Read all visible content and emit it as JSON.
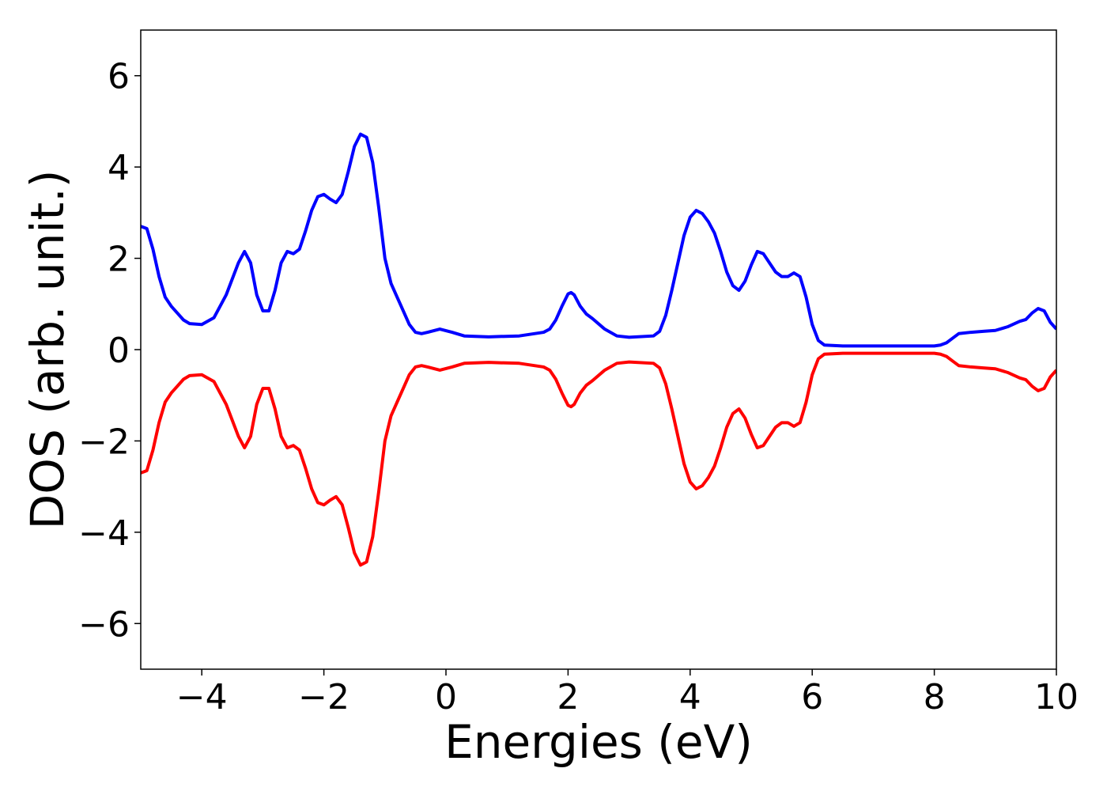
{
  "chart_data": {
    "type": "line",
    "xlabel": "Energies (eV)",
    "ylabel": "DOS (arb. unit.)",
    "x": [
      -5,
      -4.9,
      -4.8,
      -4.7,
      -4.6,
      -4.5,
      -4.4,
      -4.3,
      -4.2,
      -4.0,
      -3.8,
      -3.6,
      -3.4,
      -3.3,
      -3.2,
      -3.1,
      -3.0,
      -2.9,
      -2.8,
      -2.7,
      -2.6,
      -2.5,
      -2.4,
      -2.3,
      -2.2,
      -2.1,
      -2.0,
      -1.9,
      -1.8,
      -1.7,
      -1.6,
      -1.5,
      -1.4,
      -1.3,
      -1.2,
      -1.1,
      -1.0,
      -0.9,
      -0.8,
      -0.7,
      -0.6,
      -0.5,
      -0.4,
      -0.3,
      -0.1,
      0.1,
      0.3,
      0.7,
      1.2,
      1.6,
      1.7,
      1.8,
      1.9,
      2.0,
      2.05,
      2.1,
      2.2,
      2.3,
      2.4,
      2.6,
      2.8,
      3.0,
      3.4,
      3.5,
      3.6,
      3.7,
      3.8,
      3.9,
      4.0,
      4.1,
      4.2,
      4.3,
      4.4,
      4.5,
      4.6,
      4.7,
      4.8,
      4.9,
      5.0,
      5.1,
      5.2,
      5.3,
      5.4,
      5.5,
      5.6,
      5.7,
      5.8,
      5.9,
      6.0,
      6.1,
      6.2,
      6.5,
      7.5,
      8.0,
      8.1,
      8.2,
      8.3,
      8.4,
      8.6,
      8.8,
      9.0,
      9.2,
      9.4,
      9.5,
      9.6,
      9.7,
      9.8,
      9.9,
      10
    ],
    "series": [
      {
        "color": "#0000ff",
        "values": [
          2.7,
          2.65,
          2.2,
          1.6,
          1.15,
          0.95,
          0.8,
          0.65,
          0.57,
          0.55,
          0.7,
          1.2,
          1.9,
          2.15,
          1.9,
          1.2,
          0.85,
          0.85,
          1.3,
          1.9,
          2.15,
          2.1,
          2.2,
          2.6,
          3.05,
          3.35,
          3.4,
          3.3,
          3.22,
          3.4,
          3.9,
          4.45,
          4.72,
          4.65,
          4.1,
          3.1,
          2.0,
          1.45,
          1.15,
          0.85,
          0.55,
          0.38,
          0.35,
          0.38,
          0.45,
          0.38,
          0.3,
          0.28,
          0.3,
          0.38,
          0.45,
          0.65,
          0.95,
          1.22,
          1.25,
          1.2,
          0.95,
          0.78,
          0.68,
          0.45,
          0.3,
          0.27,
          0.3,
          0.4,
          0.75,
          1.3,
          1.9,
          2.5,
          2.9,
          3.05,
          2.98,
          2.8,
          2.55,
          2.15,
          1.7,
          1.4,
          1.3,
          1.5,
          1.85,
          2.15,
          2.1,
          1.9,
          1.7,
          1.6,
          1.6,
          1.68,
          1.6,
          1.15,
          0.55,
          0.2,
          0.1,
          0.08,
          0.08,
          0.08,
          0.1,
          0.15,
          0.25,
          0.35,
          0.38,
          0.4,
          0.42,
          0.5,
          0.62,
          0.66,
          0.8,
          0.9,
          0.85,
          0.6,
          0.45
        ]
      },
      {
        "color": "#ff0000",
        "values": [
          -2.7,
          -2.65,
          -2.2,
          -1.6,
          -1.15,
          -0.95,
          -0.8,
          -0.65,
          -0.57,
          -0.55,
          -0.7,
          -1.2,
          -1.9,
          -2.15,
          -1.9,
          -1.2,
          -0.85,
          -0.85,
          -1.3,
          -1.9,
          -2.15,
          -2.1,
          -2.2,
          -2.6,
          -3.05,
          -3.35,
          -3.4,
          -3.3,
          -3.22,
          -3.4,
          -3.9,
          -4.45,
          -4.72,
          -4.65,
          -4.1,
          -3.1,
          -2.0,
          -1.45,
          -1.15,
          -0.85,
          -0.55,
          -0.38,
          -0.35,
          -0.38,
          -0.45,
          -0.38,
          -0.3,
          -0.28,
          -0.3,
          -0.38,
          -0.45,
          -0.65,
          -0.95,
          -1.22,
          -1.25,
          -1.2,
          -0.95,
          -0.78,
          -0.68,
          -0.45,
          -0.3,
          -0.27,
          -0.3,
          -0.4,
          -0.75,
          -1.3,
          -1.9,
          -2.5,
          -2.9,
          -3.05,
          -2.98,
          -2.8,
          -2.55,
          -2.15,
          -1.7,
          -1.4,
          -1.3,
          -1.5,
          -1.85,
          -2.15,
          -2.1,
          -1.9,
          -1.7,
          -1.6,
          -1.6,
          -1.68,
          -1.6,
          -1.15,
          -0.55,
          -0.2,
          -0.1,
          -0.08,
          -0.08,
          -0.08,
          -0.1,
          -0.15,
          -0.25,
          -0.35,
          -0.38,
          -0.4,
          -0.42,
          -0.5,
          -0.62,
          -0.66,
          -0.8,
          -0.9,
          -0.85,
          -0.6,
          -0.45
        ]
      }
    ],
    "xlim": [
      -5,
      10
    ],
    "xticks": [
      {
        "value": -4,
        "label": "−4"
      },
      {
        "value": -2,
        "label": "−2"
      },
      0,
      2,
      4,
      6,
      8,
      10
    ],
    "ylim": [
      -7,
      7
    ],
    "yticks": [
      {
        "value": -6,
        "label": "−6"
      },
      {
        "value": -4,
        "label": "−4"
      },
      {
        "value": -2,
        "label": "−2"
      },
      0,
      2,
      4,
      6
    ]
  }
}
